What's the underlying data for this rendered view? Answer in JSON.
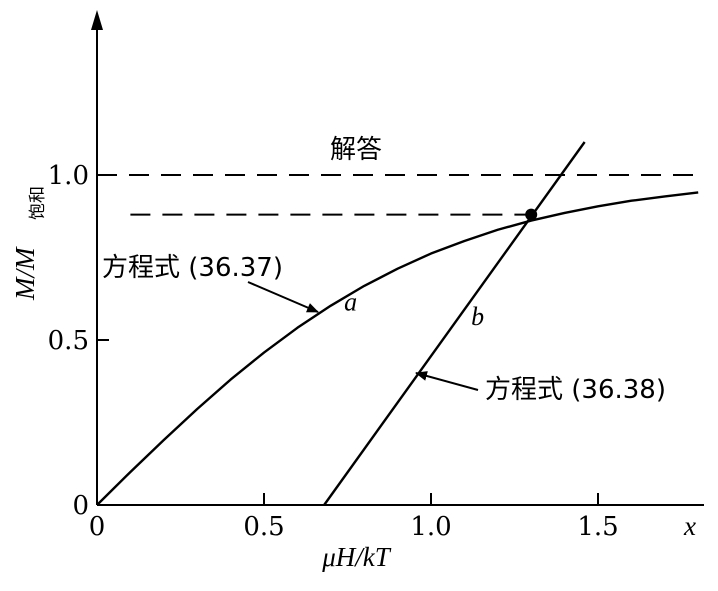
{
  "chart_data": {
    "type": "line",
    "xlabel": "μH/kT",
    "x_axis_end_label": "x",
    "ylabel": "M/M",
    "ylabel_subscript": "饱和",
    "xlim": [
      0,
      1.8
    ],
    "ylim": [
      0,
      1.45
    ],
    "x_ticks": [
      0,
      0.5,
      1.0,
      1.5
    ],
    "x_tick_labels": [
      "0",
      "0.5",
      "1.0",
      "1.5"
    ],
    "y_ticks": [
      0,
      0.5,
      1.0
    ],
    "y_tick_labels": [
      "0",
      "0.5",
      "1.0"
    ],
    "grid": false,
    "series": [
      {
        "name": "a",
        "x": [
          0,
          0.1,
          0.2,
          0.3,
          0.4,
          0.5,
          0.6,
          0.7,
          0.8,
          0.9,
          1.0,
          1.1,
          1.2,
          1.3,
          1.4,
          1.5,
          1.6,
          1.7,
          1.8
        ],
        "y": [
          0,
          0.1,
          0.197,
          0.291,
          0.38,
          0.462,
          0.537,
          0.604,
          0.664,
          0.716,
          0.762,
          0.8,
          0.834,
          0.862,
          0.885,
          0.905,
          0.922,
          0.935,
          0.947
        ]
      },
      {
        "name": "b",
        "x": [
          0.68,
          1.46
        ],
        "y": [
          0,
          1.1
        ]
      }
    ],
    "reference_lines": [
      {
        "y": 1.0,
        "style": "dashed",
        "x_from": 0,
        "x_to": 1.8
      },
      {
        "y": 0.88,
        "style": "dashed",
        "x_from": 0.1,
        "x_to": 1.3
      }
    ],
    "solution_point": {
      "x": 1.3,
      "y": 0.88
    },
    "annotations": [
      {
        "id": "solution",
        "text": "解答"
      },
      {
        "id": "eq-a",
        "text": "方程式 (36.37)"
      },
      {
        "id": "eq-b",
        "text": "方程式 (36.38)"
      }
    ]
  }
}
